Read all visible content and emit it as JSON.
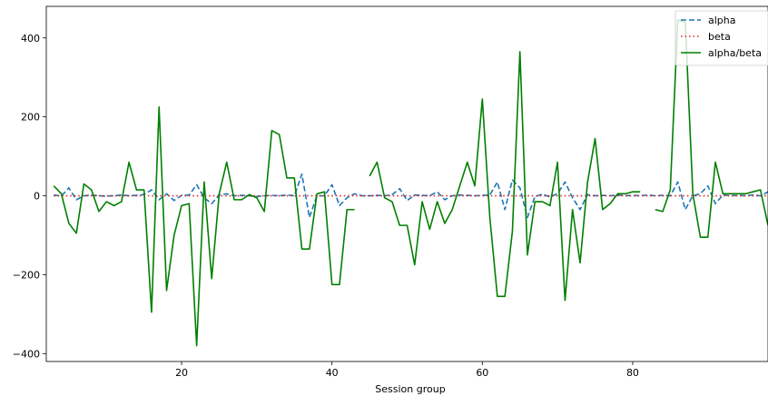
{
  "chart_data": {
    "type": "line",
    "title": "",
    "xlabel": "Session group",
    "ylabel": "",
    "xlim": [
      2,
      98
    ],
    "ylim": [
      -420,
      480
    ],
    "xticks": [
      20,
      40,
      60,
      80
    ],
    "yticks": [
      -400,
      -200,
      0,
      200,
      400
    ],
    "legend_position": "top-right",
    "grid": false,
    "series": [
      {
        "name": "alpha",
        "style": "dashed",
        "color": "#1f77b4",
        "points": [
          [
            3,
            2
          ],
          [
            4,
            -1
          ],
          [
            5,
            20
          ],
          [
            6,
            -10
          ],
          [
            7,
            0
          ],
          [
            8,
            2
          ],
          [
            9,
            0
          ],
          [
            10,
            -1
          ],
          [
            11,
            0
          ],
          [
            12,
            2
          ],
          [
            13,
            0
          ],
          [
            14,
            1
          ],
          [
            15,
            3
          ],
          [
            16,
            15
          ],
          [
            17,
            -10
          ],
          [
            18,
            5
          ],
          [
            19,
            -12
          ],
          [
            20,
            1
          ],
          [
            21,
            2
          ],
          [
            22,
            28
          ],
          [
            23,
            -5
          ],
          [
            24,
            -20
          ],
          [
            25,
            2
          ],
          [
            26,
            5
          ],
          [
            27,
            0
          ],
          [
            28,
            1
          ],
          [
            29,
            0
          ],
          [
            30,
            -2
          ],
          [
            31,
            0
          ],
          [
            32,
            1
          ],
          [
            33,
            0
          ],
          [
            34,
            2
          ],
          [
            35,
            0
          ],
          [
            36,
            55
          ],
          [
            37,
            -55
          ],
          [
            38,
            0
          ],
          [
            39,
            0
          ],
          [
            40,
            28
          ],
          [
            41,
            -25
          ],
          [
            42,
            -5
          ],
          [
            43,
            5
          ],
          [
            44,
            0
          ],
          [
            45,
            0
          ],
          [
            46,
            1
          ],
          [
            47,
            0
          ],
          [
            48,
            3
          ],
          [
            49,
            18
          ],
          [
            50,
            -12
          ],
          [
            51,
            2
          ],
          [
            52,
            1
          ],
          [
            53,
            0
          ],
          [
            54,
            10
          ],
          [
            55,
            -10
          ],
          [
            56,
            0
          ],
          [
            57,
            2
          ],
          [
            58,
            1
          ],
          [
            59,
            0
          ],
          [
            60,
            1
          ],
          [
            61,
            2
          ],
          [
            62,
            35
          ],
          [
            63,
            -35
          ],
          [
            64,
            40
          ],
          [
            65,
            20
          ],
          [
            66,
            -55
          ],
          [
            67,
            -2
          ],
          [
            68,
            4
          ],
          [
            69,
            -3
          ],
          [
            70,
            5
          ],
          [
            71,
            35
          ],
          [
            72,
            -5
          ],
          [
            73,
            -35
          ],
          [
            74,
            3
          ],
          [
            75,
            0
          ],
          [
            76,
            1
          ],
          [
            77,
            0
          ],
          [
            78,
            2
          ],
          [
            79,
            0
          ],
          [
            80,
            1
          ],
          [
            81,
            0
          ],
          [
            82,
            2
          ],
          [
            83,
            0
          ],
          [
            84,
            1
          ],
          [
            85,
            0
          ],
          [
            86,
            35
          ],
          [
            87,
            -35
          ],
          [
            88,
            0
          ],
          [
            89,
            5
          ],
          [
            90,
            25
          ],
          [
            91,
            -20
          ],
          [
            92,
            2
          ],
          [
            93,
            0
          ],
          [
            94,
            1
          ],
          [
            95,
            0
          ],
          [
            96,
            2
          ],
          [
            97,
            0
          ],
          [
            98,
            10
          ]
        ]
      },
      {
        "name": "beta",
        "style": "dotted",
        "color": "#d62728",
        "points": [
          [
            3,
            0
          ],
          [
            10,
            0
          ],
          [
            20,
            0
          ],
          [
            30,
            0
          ],
          [
            40,
            0
          ],
          [
            50,
            0
          ],
          [
            60,
            0
          ],
          [
            70,
            0
          ],
          [
            80,
            0
          ],
          [
            90,
            0
          ],
          [
            98,
            0
          ]
        ]
      },
      {
        "name": "alpha/beta",
        "style": "solid",
        "color": "#008000",
        "segments": [
          [
            [
              3,
              25
            ],
            [
              4,
              5
            ],
            [
              5,
              -70
            ],
            [
              6,
              -95
            ],
            [
              7,
              30
            ],
            [
              8,
              15
            ],
            [
              9,
              -40
            ],
            [
              10,
              -15
            ],
            [
              11,
              -25
            ],
            [
              12,
              -15
            ],
            [
              13,
              85
            ],
            [
              14,
              15
            ],
            [
              15,
              15
            ],
            [
              16,
              -295
            ],
            [
              17,
              225
            ],
            [
              18,
              -240
            ],
            [
              19,
              -100
            ],
            [
              20,
              -25
            ],
            [
              21,
              -20
            ],
            [
              22,
              -380
            ],
            [
              23,
              35
            ],
            [
              24,
              -210
            ],
            [
              25,
              5
            ],
            [
              26,
              85
            ],
            [
              27,
              -10
            ],
            [
              28,
              -10
            ],
            [
              29,
              3
            ],
            [
              30,
              -5
            ],
            [
              31,
              -40
            ],
            [
              32,
              165
            ],
            [
              33,
              155
            ],
            [
              34,
              45
            ],
            [
              35,
              45
            ],
            [
              36,
              -135
            ],
            [
              37,
              -135
            ],
            [
              38,
              5
            ],
            [
              39,
              10
            ],
            [
              40,
              -225
            ],
            [
              41,
              -225
            ],
            [
              42,
              -35
            ],
            [
              43,
              -35
            ]
          ],
          [
            [
              45,
              50
            ],
            [
              46,
              85
            ],
            [
              47,
              -5
            ],
            [
              48,
              -15
            ],
            [
              49,
              -75
            ],
            [
              50,
              -75
            ],
            [
              51,
              -175
            ],
            [
              52,
              -15
            ],
            [
              53,
              -85
            ],
            [
              54,
              -15
            ],
            [
              55,
              -70
            ],
            [
              56,
              -35
            ],
            [
              57,
              25
            ],
            [
              58,
              85
            ],
            [
              59,
              25
            ],
            [
              60,
              245
            ],
            [
              61,
              -55
            ],
            [
              62,
              -255
            ],
            [
              63,
              -255
            ],
            [
              64,
              -90
            ],
            [
              65,
              365
            ],
            [
              66,
              -150
            ],
            [
              67,
              -15
            ],
            [
              68,
              -15
            ],
            [
              69,
              -25
            ],
            [
              70,
              85
            ],
            [
              71,
              -265
            ],
            [
              72,
              -35
            ],
            [
              73,
              -170
            ],
            [
              74,
              35
            ],
            [
              75,
              145
            ],
            [
              76,
              -35
            ],
            [
              77,
              -20
            ],
            [
              78,
              5
            ],
            [
              79,
              5
            ],
            [
              80,
              10
            ],
            [
              81,
              10
            ]
          ],
          [
            [
              83,
              -35
            ],
            [
              84,
              -40
            ],
            [
              85,
              15
            ],
            [
              86,
              445
            ],
            [
              87,
              440
            ],
            [
              88,
              5
            ],
            [
              89,
              -105
            ],
            [
              90,
              -105
            ],
            [
              91,
              85
            ],
            [
              92,
              5
            ],
            [
              93,
              5
            ],
            [
              94,
              5
            ],
            [
              95,
              5
            ],
            [
              96,
              10
            ],
            [
              97,
              15
            ],
            [
              98,
              -75
            ]
          ]
        ]
      }
    ]
  }
}
